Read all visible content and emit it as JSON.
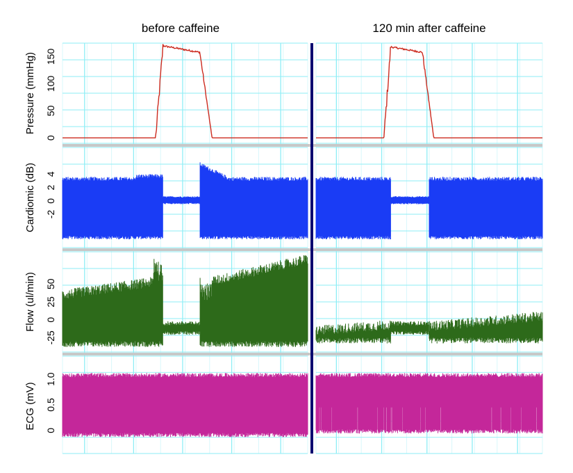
{
  "columns": [
    "before caffeine",
    "120 min after caffeine"
  ],
  "colors": {
    "pressure": "#cc2a1e",
    "cardiomic": "#1a3cf5",
    "flow": "#2d6a1a",
    "ecg": "#c4279a",
    "grid_major": "#8eeef6",
    "grid_minor": "#d8f8fb",
    "divider": "#0a0a70",
    "separator": "#c8c8c8"
  },
  "chart_data": [
    {
      "type": "line",
      "ylabel": "Pressure (mmHg)",
      "yticks": [
        "0",
        "50",
        "100",
        "150"
      ],
      "ylim": [
        -10,
        175
      ],
      "series": [
        {
          "column": "before caffeine",
          "baseline": 0,
          "plateau": 158,
          "peak": 170,
          "rise": [
            0.38,
            0.41
          ],
          "fall": [
            0.56,
            0.61
          ]
        },
        {
          "column": "120 min after caffeine",
          "baseline": 0,
          "plateau": 158,
          "peak": 168,
          "rise": [
            0.3,
            0.33
          ],
          "fall": [
            0.47,
            0.52
          ]
        }
      ]
    },
    {
      "type": "area",
      "ylabel": "Cardiomic (dB)",
      "yticks": [
        "-2",
        "0",
        "2",
        "4"
      ],
      "ylim": [
        -7,
        8
      ],
      "series": [
        {
          "column": "before caffeine",
          "upper": 3.3,
          "lower": -5.5,
          "suppressed": [
            0.41,
            0.56
          ],
          "suppressed_level": [
            -0.3,
            0.5
          ]
        },
        {
          "column": "120 min after caffeine",
          "upper": 3.3,
          "lower": -5.5,
          "suppressed": [
            0.33,
            0.5
          ],
          "suppressed_level": [
            -0.3,
            0.5
          ]
        }
      ]
    },
    {
      "type": "area",
      "ylabel": "Flow (ul/min)",
      "yticks": [
        "-25",
        "0",
        "25",
        "50"
      ],
      "ylim": [
        -45,
        95
      ],
      "series": [
        {
          "column": "before caffeine",
          "upper_start": 35,
          "upper_end": 85,
          "lower": -30,
          "suppressed": [
            0.41,
            0.56
          ]
        },
        {
          "column": "120 min after caffeine",
          "upper_start": -15,
          "upper_end": 5,
          "lower": -25,
          "suppressed": [
            0.33,
            0.5
          ]
        }
      ]
    },
    {
      "type": "area",
      "ylabel": "ECG (mV)",
      "yticks": [
        "0",
        "0.5",
        "1.0"
      ],
      "ylim": [
        -0.45,
        1.45
      ],
      "series": [
        {
          "column": "before caffeine",
          "upper": 1.08,
          "lower": -0.05
        },
        {
          "column": "120 min after caffeine",
          "upper": 1.08,
          "lower": 0.02
        }
      ]
    }
  ]
}
